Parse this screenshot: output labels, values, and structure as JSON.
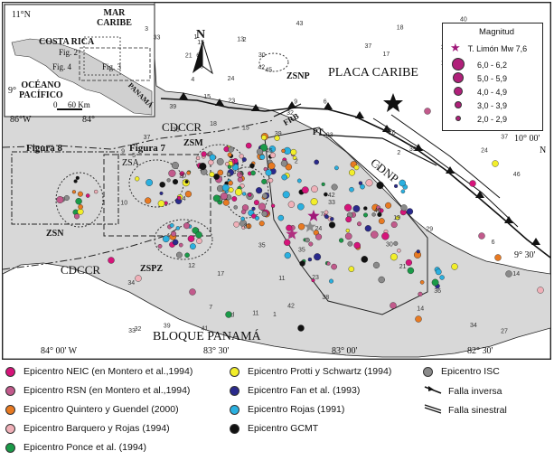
{
  "map": {
    "inset": {
      "labels": {
        "lat_top": "11°N",
        "lat_mid": "9°",
        "lon_left": "86°W",
        "lon_right": "84°",
        "mar_caribe": "MAR\nCARIBE",
        "costa_rica": "COSTA RICA",
        "oceano": "OCÉANO\nPACÍFICO",
        "panama": "PANAMÁ",
        "fig2": "Fig. 2",
        "fig3": "Fig. 3",
        "fig4": "Fig. 4",
        "scale_0": "0",
        "scale_60": "60 Km"
      }
    },
    "labels": {
      "north": "N",
      "placa_caribe": "PLACA CARIBE",
      "cdccr_top": "CDCCR",
      "cdccr_left": "CDCCR",
      "cdnp": "CDNP",
      "bloque_panama": "BLOQUE PANAMÁ",
      "figura8": "Figura 8",
      "figura7": "Figura 7",
      "zsm": "ZSM",
      "zsa": "ZSA",
      "zsn": "ZSN",
      "zspz": "ZSPZ",
      "zsnp": "ZSNP",
      "frb": "FRB",
      "pt": "PT",
      "coord_10": "10° 00'",
      "coord_10_n": "N",
      "coord_9_30": "9° 30'",
      "limon_star": "T. Limón Mw 7,6"
    },
    "axis_ticks": [
      "84° 00' W",
      "83° 30'",
      "83° 00'",
      "82° 30'"
    ],
    "magnitude_legend": {
      "title": "Magnitud",
      "star_label": "T. Limón Mw 7,6",
      "classes": [
        "6,0 - 6,2",
        "5,0 - 5,9",
        "4,0 - 4,9",
        "3,0 - 3,9",
        "2,0 - 2,9"
      ]
    },
    "numbers": [
      "32",
      "23",
      "15",
      "32",
      "40",
      "17",
      "35",
      "33",
      "34",
      "4",
      "1",
      "34",
      "4",
      "d",
      "27",
      "14",
      "18",
      "23",
      "15",
      "29",
      "39",
      "40",
      "31",
      "12",
      "3",
      "7",
      "10",
      "20",
      "24",
      "6",
      "35",
      "15",
      "4",
      "13",
      "30",
      "9",
      "34",
      "19",
      "16",
      "37",
      "2",
      "30",
      "43",
      "5",
      "36",
      "33",
      "33",
      "11",
      "1",
      "9",
      "31",
      "38",
      "2",
      "37",
      "6",
      "23",
      "24",
      "39",
      "18",
      "6",
      "24",
      "7",
      "17",
      "38",
      "2",
      "11",
      "14",
      "45",
      "46",
      "39",
      "37",
      "42",
      "5",
      "42",
      "17",
      "21",
      "42",
      "21",
      "41",
      "7",
      "45",
      "39",
      "33"
    ]
  },
  "legend": {
    "items": [
      {
        "label": "Epicentro NEIC (en Montero et al.,1994)",
        "color": "#d6147a"
      },
      {
        "label": "Epicentro RSN (en Montero et al.,1994)",
        "color": "#c25a8c"
      },
      {
        "label": "Epicentro Quintero y Guendel (2000)",
        "color": "#e87a22"
      },
      {
        "label": "Epicentro Barquero y Rojas (1994)",
        "color": "#f0b0b8"
      },
      {
        "label": "Epicentro Ponce et al. (1994)",
        "color": "#1a9a48"
      },
      {
        "label": "Epicentro Protti y Schwartz (1994)",
        "color": "#f2ee2a"
      },
      {
        "label": "Epicentro Fan et al. (1993)",
        "color": "#2a2a8c"
      },
      {
        "label": "Epicentro Rojas (1991)",
        "color": "#2ab0e0"
      },
      {
        "label": "Epicentro GCMT",
        "color": "#111111"
      },
      {
        "label": "Epicentro ISC",
        "color": "#8a8a8a"
      },
      {
        "label": "Falla inversa",
        "symbol": "thrust"
      },
      {
        "label": "Falla sinestral",
        "symbol": "sinistral"
      }
    ]
  }
}
